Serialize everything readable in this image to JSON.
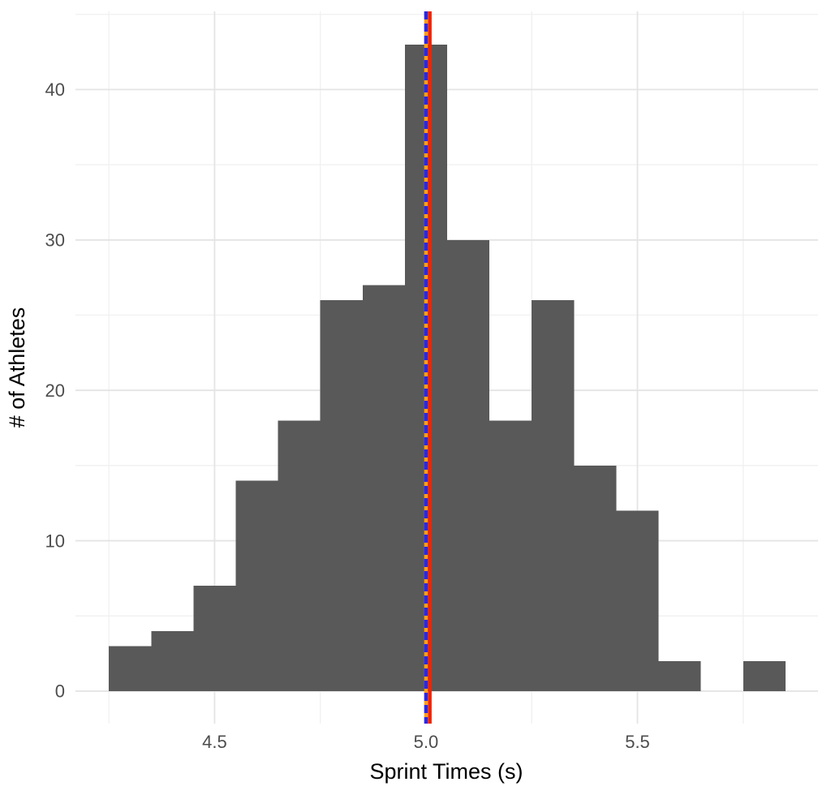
{
  "figure": {
    "background": "#FFFFFF"
  },
  "chart_data": {
    "type": "bar",
    "subtype": "histogram",
    "title": "",
    "xlabel": "Sprint Times (s)",
    "ylabel": "# of Athletes",
    "bin_width": 0.1,
    "bin_centers": [
      4.3,
      4.4,
      4.5,
      4.6,
      4.7,
      4.8,
      4.9,
      5.0,
      5.1,
      5.2,
      5.3,
      5.4,
      5.5,
      5.6,
      5.7,
      5.8
    ],
    "counts": [
      3,
      4,
      7,
      14,
      18,
      26,
      27,
      43,
      30,
      18,
      26,
      15,
      12,
      2,
      0,
      2
    ],
    "bar_color": "#595959",
    "x_ticks": {
      "values": [
        4.5,
        5.0,
        5.5
      ],
      "labels": [
        "4.5",
        "5.0",
        "5.5"
      ]
    },
    "x_minor_ticks": [
      4.25,
      4.75,
      5.25,
      5.75
    ],
    "y_ticks": {
      "values": [
        0,
        10,
        20,
        30,
        40
      ],
      "labels": [
        "0",
        "10",
        "20",
        "30",
        "40"
      ]
    },
    "y_minor_ticks": [
      5,
      15,
      25,
      35,
      45
    ],
    "xlim": [
      4.171,
      5.927
    ],
    "ylim": [
      -2.16,
      45.2
    ],
    "grid": {
      "show": true,
      "major_color": "#E4E4E4",
      "minor_color": "#F1F1F1"
    },
    "legend_position": "none",
    "tick_label_color": "#4D4D4D",
    "axis_title_color": "#000000",
    "vlines": [
      {
        "x": 5.0,
        "color": "#FF9E1B",
        "style": "solid",
        "width": 4.5,
        "name": "vline-orange-solid"
      },
      {
        "x": 5.0,
        "color": "#2828E8",
        "style": "dashed",
        "dash": "10 5",
        "width": 4.5,
        "name": "vline-blue-dashed"
      },
      {
        "x": 5.009,
        "color": "#F32300",
        "style": "solid",
        "width": 4.5,
        "name": "vline-red-solid"
      }
    ]
  }
}
